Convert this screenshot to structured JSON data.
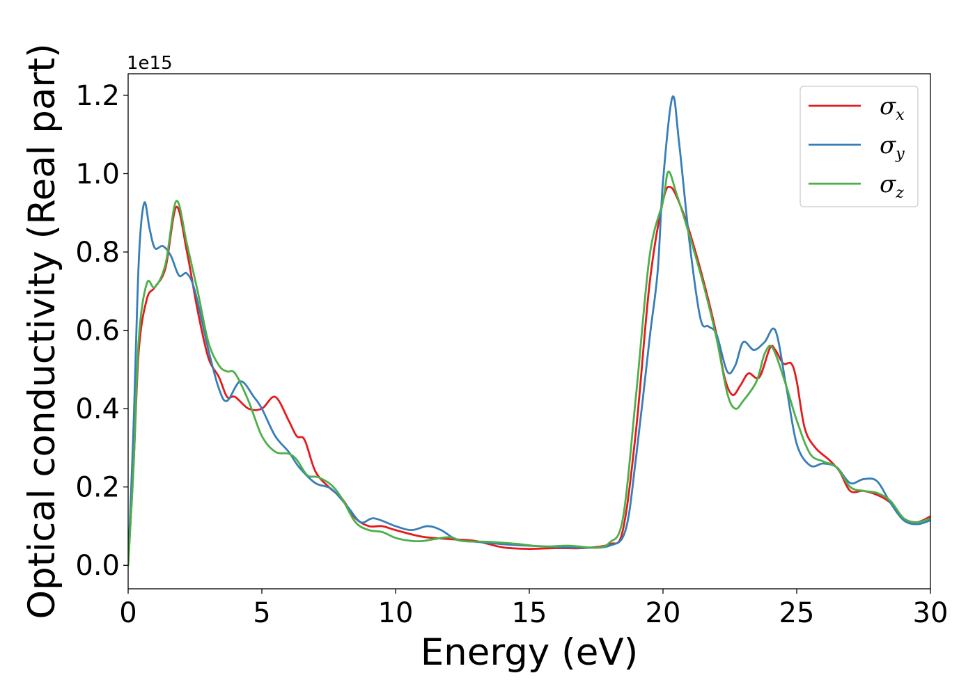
{
  "chart_data": {
    "type": "line",
    "title": "",
    "xlabel": "Energy (eV)",
    "ylabel": "Optical conductivity (Real part)",
    "y_offset_label": "1e15",
    "xlim": [
      0,
      30
    ],
    "ylim": [
      -0.06,
      1.255
    ],
    "x_ticks": [
      0,
      5,
      10,
      15,
      20,
      25,
      30
    ],
    "x_tick_labels": [
      "0",
      "5",
      "10",
      "15",
      "20",
      "25",
      "30"
    ],
    "y_ticks": [
      0.0,
      0.2,
      0.4,
      0.6,
      0.8,
      1.0,
      1.2
    ],
    "y_tick_labels": [
      "0.0",
      "0.2",
      "0.4",
      "0.6",
      "0.8",
      "1.0",
      "1.2"
    ],
    "grid": false,
    "legend_position": "top-right",
    "series": [
      {
        "name": "σx",
        "symbol": "σ",
        "subscript": "x",
        "color": "#e41a1c",
        "points": [
          [
            0,
            0.0
          ],
          [
            0.2,
            0.25
          ],
          [
            0.4,
            0.55
          ],
          [
            0.7,
            0.68
          ],
          [
            1.0,
            0.71
          ],
          [
            1.4,
            0.76
          ],
          [
            1.8,
            0.915
          ],
          [
            2.2,
            0.8
          ],
          [
            2.6,
            0.65
          ],
          [
            3.0,
            0.53
          ],
          [
            3.4,
            0.48
          ],
          [
            3.7,
            0.43
          ],
          [
            4.0,
            0.43
          ],
          [
            4.5,
            0.4
          ],
          [
            5.0,
            0.4
          ],
          [
            5.5,
            0.43
          ],
          [
            6.0,
            0.37
          ],
          [
            6.3,
            0.33
          ],
          [
            6.6,
            0.32
          ],
          [
            7.0,
            0.24
          ],
          [
            7.5,
            0.2
          ],
          [
            8.0,
            0.17
          ],
          [
            8.5,
            0.12
          ],
          [
            9.0,
            0.1
          ],
          [
            9.5,
            0.1
          ],
          [
            10.0,
            0.09
          ],
          [
            11.0,
            0.073
          ],
          [
            12.0,
            0.067
          ],
          [
            13.0,
            0.062
          ],
          [
            14.0,
            0.046
          ],
          [
            15.0,
            0.042
          ],
          [
            16.0,
            0.044
          ],
          [
            17.0,
            0.044
          ],
          [
            18.0,
            0.054
          ],
          [
            18.5,
            0.09
          ],
          [
            19.0,
            0.35
          ],
          [
            19.5,
            0.72
          ],
          [
            20.0,
            0.93
          ],
          [
            20.3,
            0.965
          ],
          [
            20.7,
            0.91
          ],
          [
            21.0,
            0.85
          ],
          [
            21.5,
            0.73
          ],
          [
            22.0,
            0.59
          ],
          [
            22.3,
            0.48
          ],
          [
            22.6,
            0.435
          ],
          [
            22.9,
            0.46
          ],
          [
            23.2,
            0.49
          ],
          [
            23.6,
            0.48
          ],
          [
            24.0,
            0.555
          ],
          [
            24.2,
            0.55
          ],
          [
            24.5,
            0.515
          ],
          [
            24.8,
            0.515
          ],
          [
            25.0,
            0.47
          ],
          [
            25.3,
            0.35
          ],
          [
            25.7,
            0.3
          ],
          [
            26.2,
            0.27
          ],
          [
            26.6,
            0.24
          ],
          [
            27.0,
            0.19
          ],
          [
            27.5,
            0.19
          ],
          [
            28.0,
            0.18
          ],
          [
            28.5,
            0.16
          ],
          [
            29.0,
            0.12
          ],
          [
            29.5,
            0.11
          ],
          [
            30.0,
            0.125
          ]
        ]
      },
      {
        "name": "σy",
        "symbol": "σ",
        "subscript": "y",
        "color": "#377eb8",
        "points": [
          [
            0,
            0.0
          ],
          [
            0.2,
            0.35
          ],
          [
            0.4,
            0.78
          ],
          [
            0.6,
            0.925
          ],
          [
            0.8,
            0.86
          ],
          [
            1.0,
            0.81
          ],
          [
            1.3,
            0.815
          ],
          [
            1.6,
            0.79
          ],
          [
            1.9,
            0.74
          ],
          [
            2.2,
            0.745
          ],
          [
            2.5,
            0.7
          ],
          [
            3.0,
            0.55
          ],
          [
            3.4,
            0.45
          ],
          [
            3.7,
            0.42
          ],
          [
            4.2,
            0.47
          ],
          [
            4.7,
            0.43
          ],
          [
            5.0,
            0.4
          ],
          [
            5.5,
            0.33
          ],
          [
            6.0,
            0.29
          ],
          [
            6.4,
            0.25
          ],
          [
            7.0,
            0.21
          ],
          [
            7.6,
            0.195
          ],
          [
            8.2,
            0.15
          ],
          [
            8.7,
            0.11
          ],
          [
            9.2,
            0.12
          ],
          [
            10.0,
            0.1
          ],
          [
            10.6,
            0.09
          ],
          [
            11.2,
            0.1
          ],
          [
            11.7,
            0.09
          ],
          [
            12.3,
            0.065
          ],
          [
            13.0,
            0.06
          ],
          [
            14.0,
            0.054
          ],
          [
            15.0,
            0.05
          ],
          [
            16.0,
            0.047
          ],
          [
            17.0,
            0.045
          ],
          [
            18.0,
            0.05
          ],
          [
            18.6,
            0.09
          ],
          [
            19.0,
            0.28
          ],
          [
            19.5,
            0.58
          ],
          [
            19.8,
            0.75
          ],
          [
            20.0,
            0.98
          ],
          [
            20.35,
            1.195
          ],
          [
            20.6,
            1.08
          ],
          [
            21.0,
            0.82
          ],
          [
            21.4,
            0.63
          ],
          [
            21.7,
            0.61
          ],
          [
            22.0,
            0.59
          ],
          [
            22.4,
            0.495
          ],
          [
            22.7,
            0.51
          ],
          [
            23.0,
            0.57
          ],
          [
            23.4,
            0.55
          ],
          [
            23.8,
            0.57
          ],
          [
            24.2,
            0.6
          ],
          [
            24.6,
            0.46
          ],
          [
            25.0,
            0.31
          ],
          [
            25.5,
            0.255
          ],
          [
            26.0,
            0.26
          ],
          [
            26.5,
            0.25
          ],
          [
            27.0,
            0.21
          ],
          [
            27.5,
            0.22
          ],
          [
            28.0,
            0.215
          ],
          [
            28.5,
            0.16
          ],
          [
            29.0,
            0.115
          ],
          [
            29.5,
            0.105
          ],
          [
            30.0,
            0.115
          ]
        ]
      },
      {
        "name": "σz",
        "symbol": "σ",
        "subscript": "z",
        "color": "#4daf4a",
        "points": [
          [
            0,
            0.0
          ],
          [
            0.2,
            0.25
          ],
          [
            0.4,
            0.58
          ],
          [
            0.7,
            0.72
          ],
          [
            1.0,
            0.71
          ],
          [
            1.4,
            0.77
          ],
          [
            1.8,
            0.93
          ],
          [
            2.2,
            0.82
          ],
          [
            2.6,
            0.7
          ],
          [
            3.0,
            0.57
          ],
          [
            3.4,
            0.51
          ],
          [
            3.7,
            0.495
          ],
          [
            4.0,
            0.49
          ],
          [
            4.5,
            0.42
          ],
          [
            5.0,
            0.33
          ],
          [
            5.5,
            0.29
          ],
          [
            6.0,
            0.285
          ],
          [
            6.3,
            0.27
          ],
          [
            6.7,
            0.23
          ],
          [
            7.1,
            0.225
          ],
          [
            7.6,
            0.205
          ],
          [
            8.0,
            0.17
          ],
          [
            8.5,
            0.11
          ],
          [
            9.0,
            0.09
          ],
          [
            9.5,
            0.085
          ],
          [
            10.0,
            0.07
          ],
          [
            10.5,
            0.063
          ],
          [
            11.0,
            0.062
          ],
          [
            12.0,
            0.072
          ],
          [
            12.5,
            0.062
          ],
          [
            13.5,
            0.06
          ],
          [
            14.5,
            0.055
          ],
          [
            15.5,
            0.048
          ],
          [
            16.5,
            0.05
          ],
          [
            17.5,
            0.045
          ],
          [
            18.0,
            0.058
          ],
          [
            18.5,
            0.12
          ],
          [
            19.0,
            0.44
          ],
          [
            19.5,
            0.79
          ],
          [
            20.0,
            0.93
          ],
          [
            20.2,
            1.005
          ],
          [
            20.5,
            0.95
          ],
          [
            21.0,
            0.84
          ],
          [
            21.5,
            0.72
          ],
          [
            22.0,
            0.58
          ],
          [
            22.4,
            0.44
          ],
          [
            22.7,
            0.4
          ],
          [
            23.0,
            0.42
          ],
          [
            23.5,
            0.47
          ],
          [
            23.8,
            0.54
          ],
          [
            24.1,
            0.555
          ],
          [
            24.6,
            0.46
          ],
          [
            25.0,
            0.37
          ],
          [
            25.5,
            0.285
          ],
          [
            26.0,
            0.265
          ],
          [
            26.5,
            0.25
          ],
          [
            27.0,
            0.2
          ],
          [
            27.5,
            0.19
          ],
          [
            28.0,
            0.185
          ],
          [
            28.5,
            0.165
          ],
          [
            29.0,
            0.12
          ],
          [
            29.5,
            0.11
          ],
          [
            30.0,
            0.12
          ]
        ]
      }
    ]
  }
}
